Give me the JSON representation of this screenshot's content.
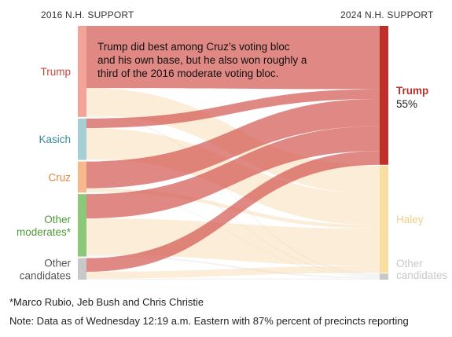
{
  "chart_data": {
    "type": "sankey",
    "left_header": "2016 N.H. SUPPORT",
    "right_header": "2024 N.H. SUPPORT",
    "sources": [
      {
        "id": "trump",
        "label": "Trump",
        "color": "#f2a49a"
      },
      {
        "id": "kasich",
        "label": "Kasich",
        "color": "#a6cfd5"
      },
      {
        "id": "cruz",
        "label": "Cruz",
        "color": "#f6b98c"
      },
      {
        "id": "other_moderates",
        "label": "Other moderates*",
        "color": "#8dc87a"
      },
      {
        "id": "other_candidates",
        "label": "Other candidates",
        "color": "#c8c8c8"
      }
    ],
    "targets": [
      {
        "id": "trump",
        "label": "Trump",
        "value_label": "55%",
        "color": "#c0302b"
      },
      {
        "id": "haley",
        "label": "Haley",
        "value_label": "",
        "color": "#f8dfa0"
      },
      {
        "id": "other",
        "label": "Other candidates",
        "value_label": "",
        "color": "#c8c8c8"
      }
    ],
    "flows": [
      {
        "source": "trump",
        "target": "trump",
        "share": 0.228
      },
      {
        "source": "trump",
        "target": "haley",
        "share": 0.101
      },
      {
        "source": "trump",
        "target": "other",
        "share": 0.005
      },
      {
        "source": "kasich",
        "target": "trump",
        "share": 0.035
      },
      {
        "source": "kasich",
        "target": "haley",
        "share": 0.113
      },
      {
        "source": "kasich",
        "target": "other",
        "share": 0.004
      },
      {
        "source": "cruz",
        "target": "trump",
        "share": 0.098
      },
      {
        "source": "cruz",
        "target": "haley",
        "share": 0.013
      },
      {
        "source": "cruz",
        "target": "other",
        "share": 0.003
      },
      {
        "source": "other_moderates",
        "target": "trump",
        "share": 0.089
      },
      {
        "source": "other_moderates",
        "target": "haley",
        "share": 0.134
      },
      {
        "source": "other_moderates",
        "target": "other",
        "share": 0.006
      },
      {
        "source": "other_candidates",
        "target": "trump",
        "share": 0.05
      },
      {
        "source": "other_candidates",
        "target": "haley",
        "share": 0.025
      },
      {
        "source": "other_candidates",
        "target": "other",
        "share": 0.004
      }
    ],
    "annotation": "Trump did best among Cruz’s voting bloc and his own base, but he also won roughly a third of the 2016 moderate voting bloc."
  },
  "footnotes": {
    "asterisk": "*Marco Rubio, Jeb Bush and Chris Christie",
    "note": "Note: Data as of Wednesday 12:19 a.m. Eastern with 87% percent of precincts reporting"
  }
}
